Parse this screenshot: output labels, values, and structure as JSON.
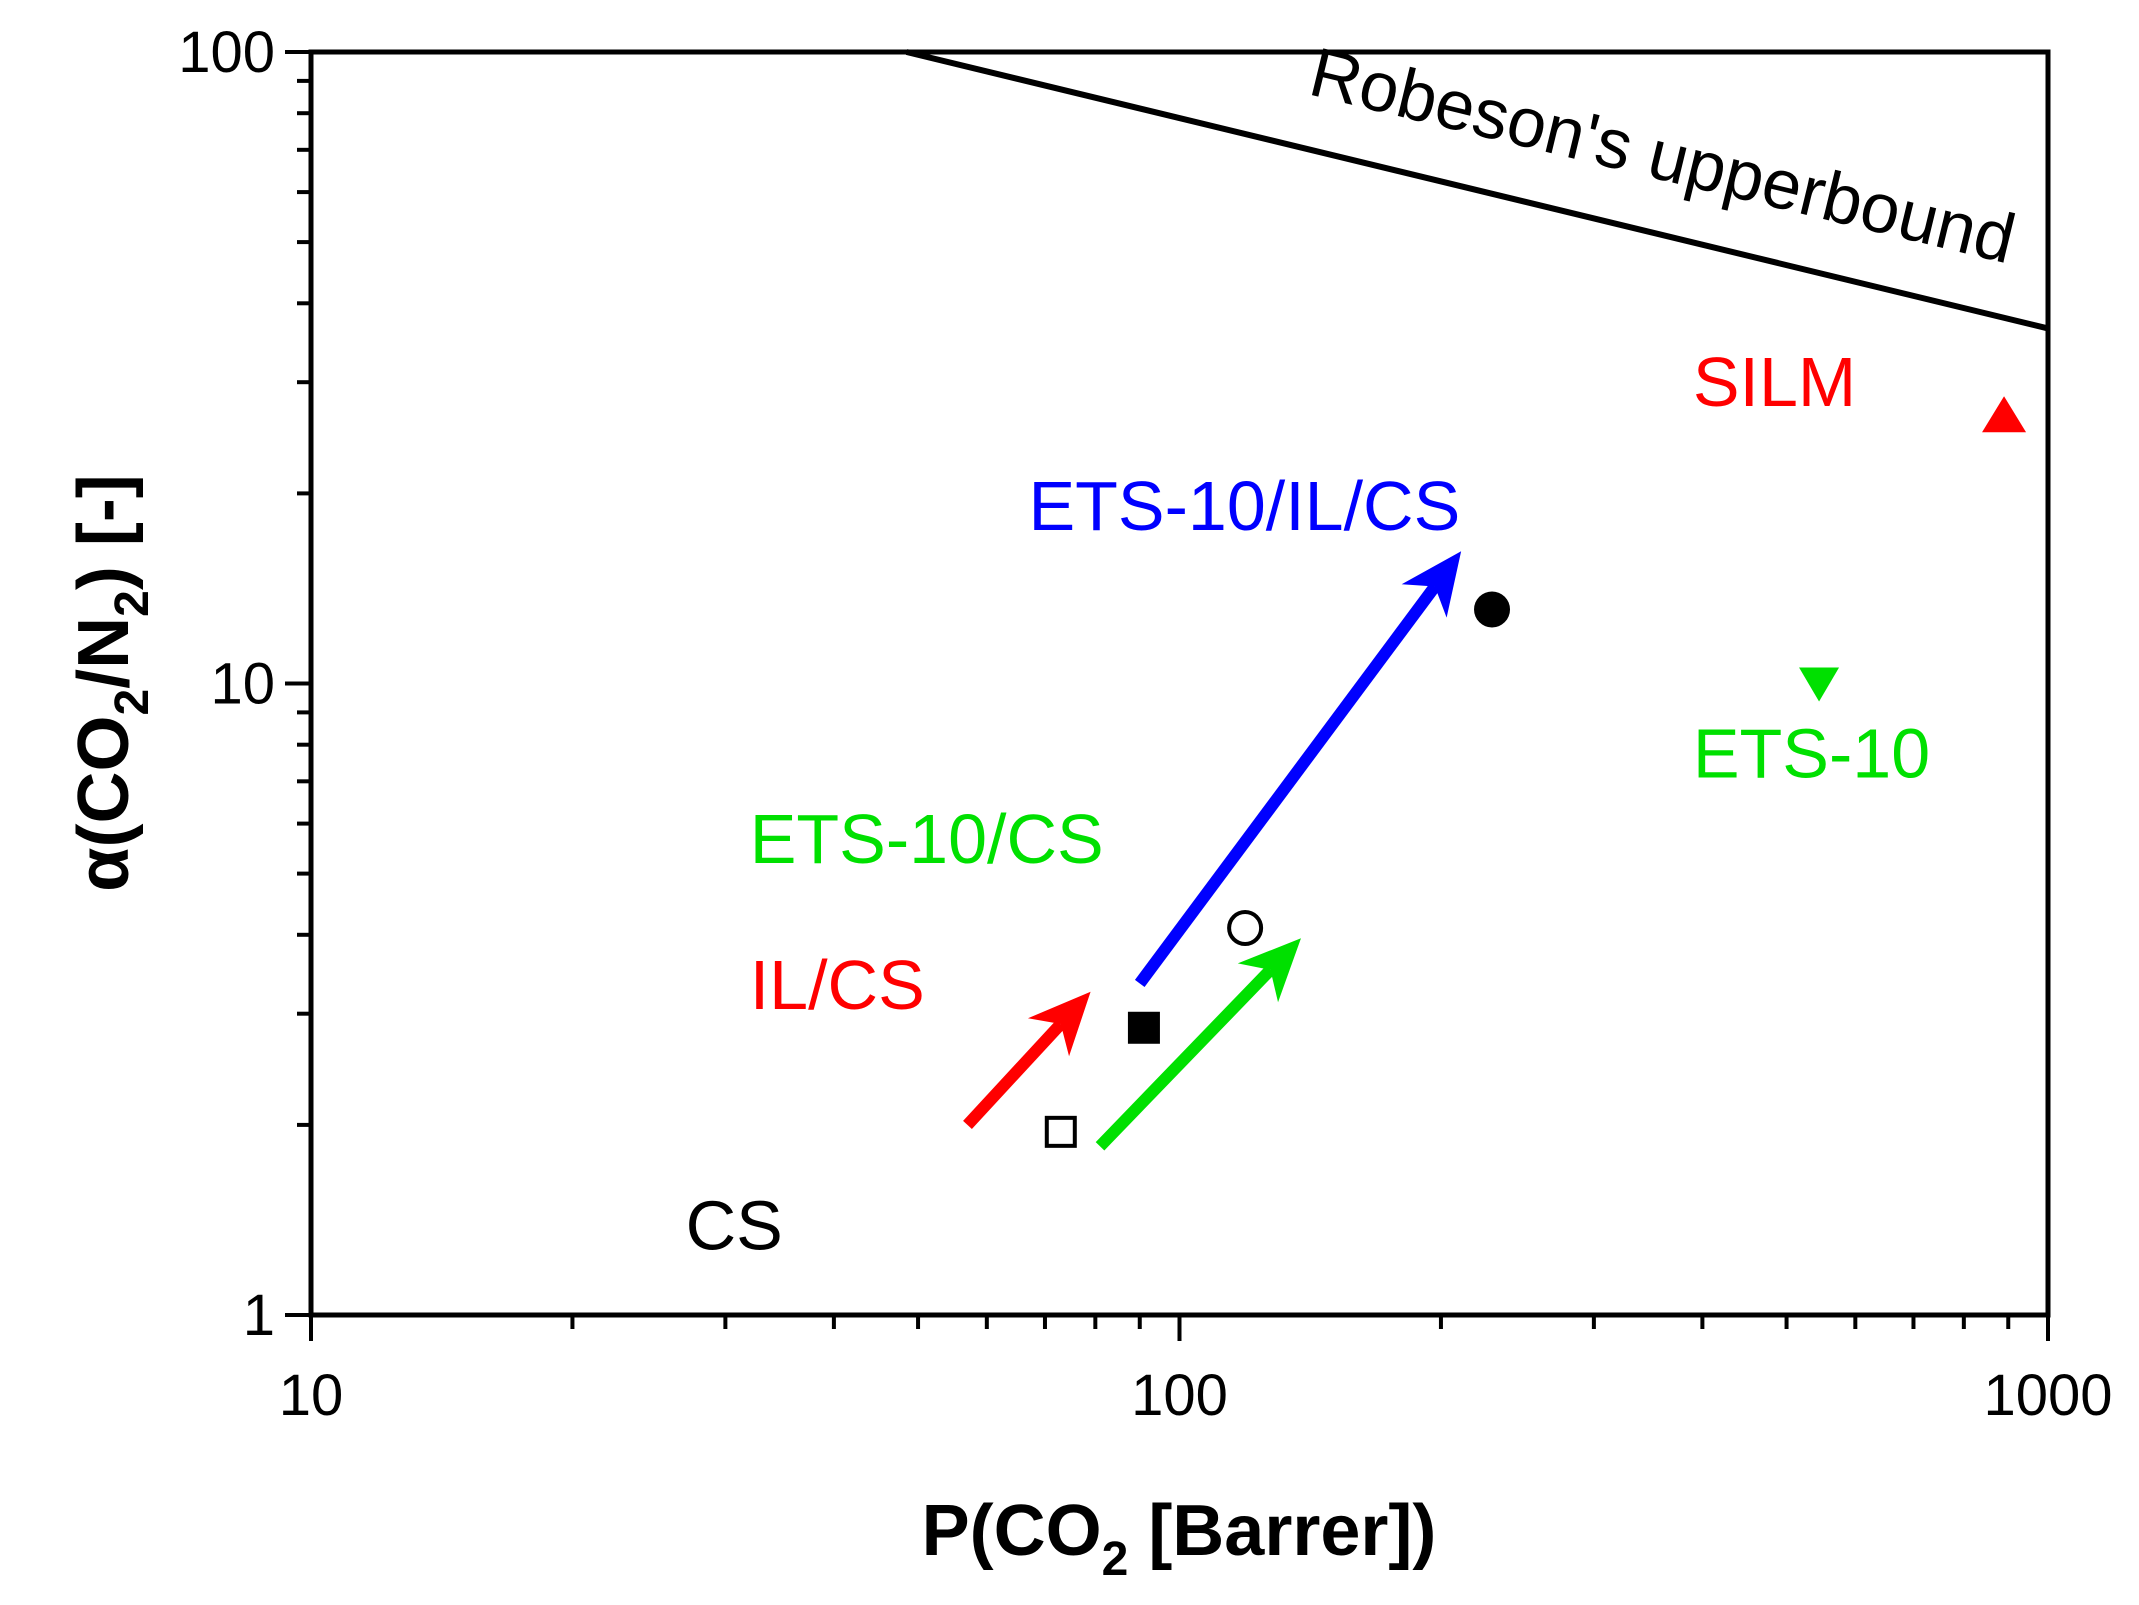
{
  "chart_data": {
    "type": "scatter",
    "xscale": "log",
    "yscale": "log",
    "xlim": [
      10,
      1000
    ],
    "ylim": [
      1,
      100
    ],
    "x_ticks": [
      "10",
      "100",
      "1000"
    ],
    "y_ticks": [
      "1",
      "10",
      "100"
    ],
    "xlabel": {
      "main": "P(CO",
      "sub": "2",
      "rest": " [Barrer])"
    },
    "ylabel": {
      "a": "α(CO",
      "sub1": "2",
      "b": "/N",
      "sub2": "2",
      "c": ") [-]"
    },
    "grid": false,
    "points": [
      {
        "label": "CS",
        "x": 73,
        "y": 1.95,
        "marker": "square-open",
        "color": "#000000"
      },
      {
        "label": "IL/CS",
        "x": 91,
        "y": 2.85,
        "marker": "square-filled",
        "color": "#000000"
      },
      {
        "label": "ETS-10/CS",
        "x": 119,
        "y": 4.1,
        "marker": "circle-open",
        "color": "#000000"
      },
      {
        "label": "ETS-10/IL/CS",
        "x": 229,
        "y": 13.1,
        "marker": "circle-filled",
        "color": "#000000"
      },
      {
        "label": "ETS-10",
        "x": 545,
        "y": 10,
        "marker": "triangle-down",
        "color": "#00e000"
      },
      {
        "label": "SILM",
        "x": 890,
        "y": 26.5,
        "marker": "triangle-up",
        "color": "#ff0000"
      }
    ],
    "upper_bound": {
      "label": "Robeson's upperbound",
      "x": [
        48.5,
        1000
      ],
      "y": [
        100,
        36.5
      ]
    },
    "annotations": [
      {
        "text": "CS",
        "color": "#000000",
        "x": 27,
        "y": 1.27
      },
      {
        "text": "IL/CS",
        "color": "#ff0000",
        "x": 32,
        "y": 3.05
      },
      {
        "text": "ETS-10/CS",
        "color": "#00e000",
        "x": 32,
        "y": 5.2
      },
      {
        "text": "ETS-10/IL/CS",
        "color": "#0000ff",
        "x": 67,
        "y": 17.5
      },
      {
        "text": "ETS-10",
        "color": "#00e000",
        "x": 390,
        "y": 7.1
      },
      {
        "text": "SILM",
        "color": "#ff0000",
        "x": 390,
        "y": 27.5
      }
    ],
    "arrows": [
      {
        "color": "#ff0000",
        "from": [
          57,
          2.0
        ],
        "to": [
          79,
          3.25
        ]
      },
      {
        "color": "#00e000",
        "from": [
          81,
          1.85
        ],
        "to": [
          138,
          3.95
        ]
      },
      {
        "color": "#0000ff",
        "from": [
          90,
          3.35
        ],
        "to": [
          211,
          16.2
        ]
      }
    ]
  }
}
